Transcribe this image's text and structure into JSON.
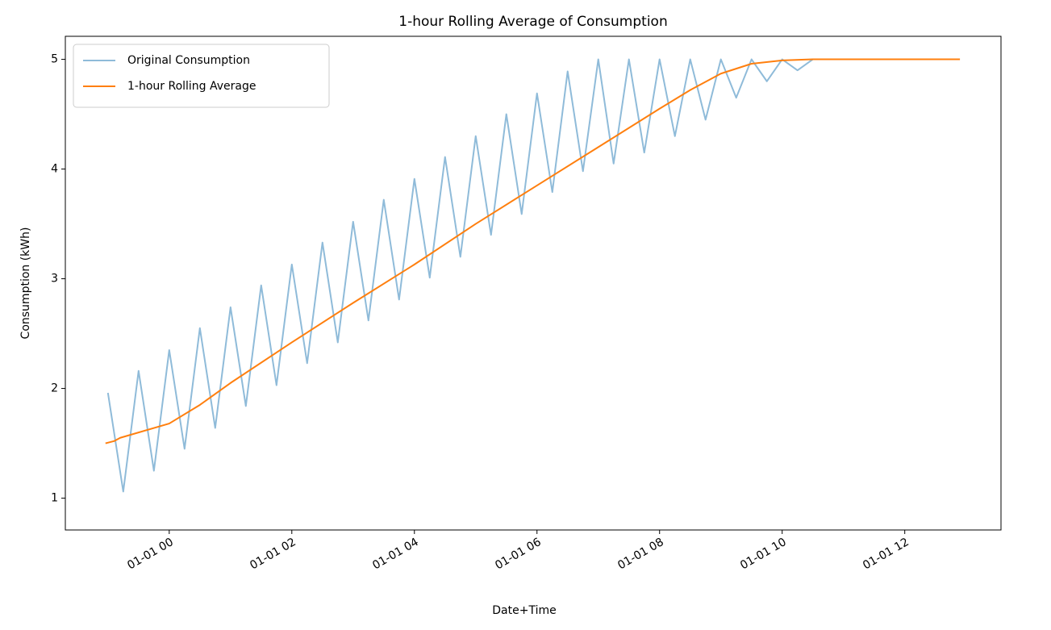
{
  "chart_data": {
    "type": "line",
    "title": "1-hour Rolling Average of Consumption",
    "x_label": "Date+Time",
    "y_label": "Consumption (kWh)",
    "xlim": [
      -1.695,
      13.57
    ],
    "ylim": [
      0.71,
      5.21
    ],
    "xticks": [
      {
        "value": 0,
        "label": "01-01 00"
      },
      {
        "value": 2,
        "label": "01-01 02"
      },
      {
        "value": 4,
        "label": "01-01 04"
      },
      {
        "value": 6,
        "label": "01-01 06"
      },
      {
        "value": 8,
        "label": "01-01 08"
      },
      {
        "value": 10,
        "label": "01-01 10"
      },
      {
        "value": 12,
        "label": "01-01 12"
      }
    ],
    "yticks": [
      1,
      2,
      3,
      4,
      5
    ],
    "grid": false,
    "legend": "upper left",
    "series": [
      {
        "name": "Original Consumption",
        "color": "#8fbbd9",
        "width": 2,
        "x": [
          -1.0,
          -0.75,
          -0.5,
          -0.25,
          0,
          0.25,
          0.5,
          0.75,
          1,
          1.25,
          1.5,
          1.75,
          2,
          2.25,
          2.5,
          2.75,
          3,
          3.25,
          3.5,
          3.75,
          4,
          4.25,
          4.5,
          4.75,
          5,
          5.25,
          5.5,
          5.75,
          6,
          6.25,
          6.5,
          6.75,
          7,
          7.25,
          7.5,
          7.75,
          8,
          8.25,
          8.5,
          8.75,
          9,
          9.25,
          9.5,
          9.75,
          10,
          10.25,
          10.5
        ],
        "values": [
          1.96,
          1.06,
          2.16,
          1.25,
          2.35,
          1.45,
          2.55,
          1.64,
          2.74,
          1.84,
          2.94,
          2.03,
          3.13,
          2.23,
          3.33,
          2.42,
          3.52,
          2.62,
          3.72,
          2.81,
          3.91,
          3.01,
          4.11,
          3.2,
          4.3,
          3.4,
          4.5,
          3.59,
          4.69,
          3.79,
          4.89,
          3.98,
          5,
          4.05,
          5,
          4.15,
          5,
          4.3,
          5,
          4.45,
          5,
          4.65,
          5,
          4.8,
          5,
          4.9,
          5
        ]
      },
      {
        "name": "1-hour Rolling Average",
        "color": "#ff7f0e",
        "width": 2,
        "x": [
          -1.04,
          -0.9,
          -0.8,
          0,
          0.5,
          1,
          2,
          3,
          4,
          5,
          6,
          7,
          8,
          8.5,
          9,
          9.5,
          10,
          10.5,
          12.9
        ],
        "values": [
          1.5,
          1.52,
          1.55,
          1.68,
          1.85,
          2.05,
          2.42,
          2.78,
          3.13,
          3.5,
          3.85,
          4.2,
          4.55,
          4.72,
          4.87,
          4.96,
          4.99,
          5,
          5
        ]
      }
    ]
  }
}
